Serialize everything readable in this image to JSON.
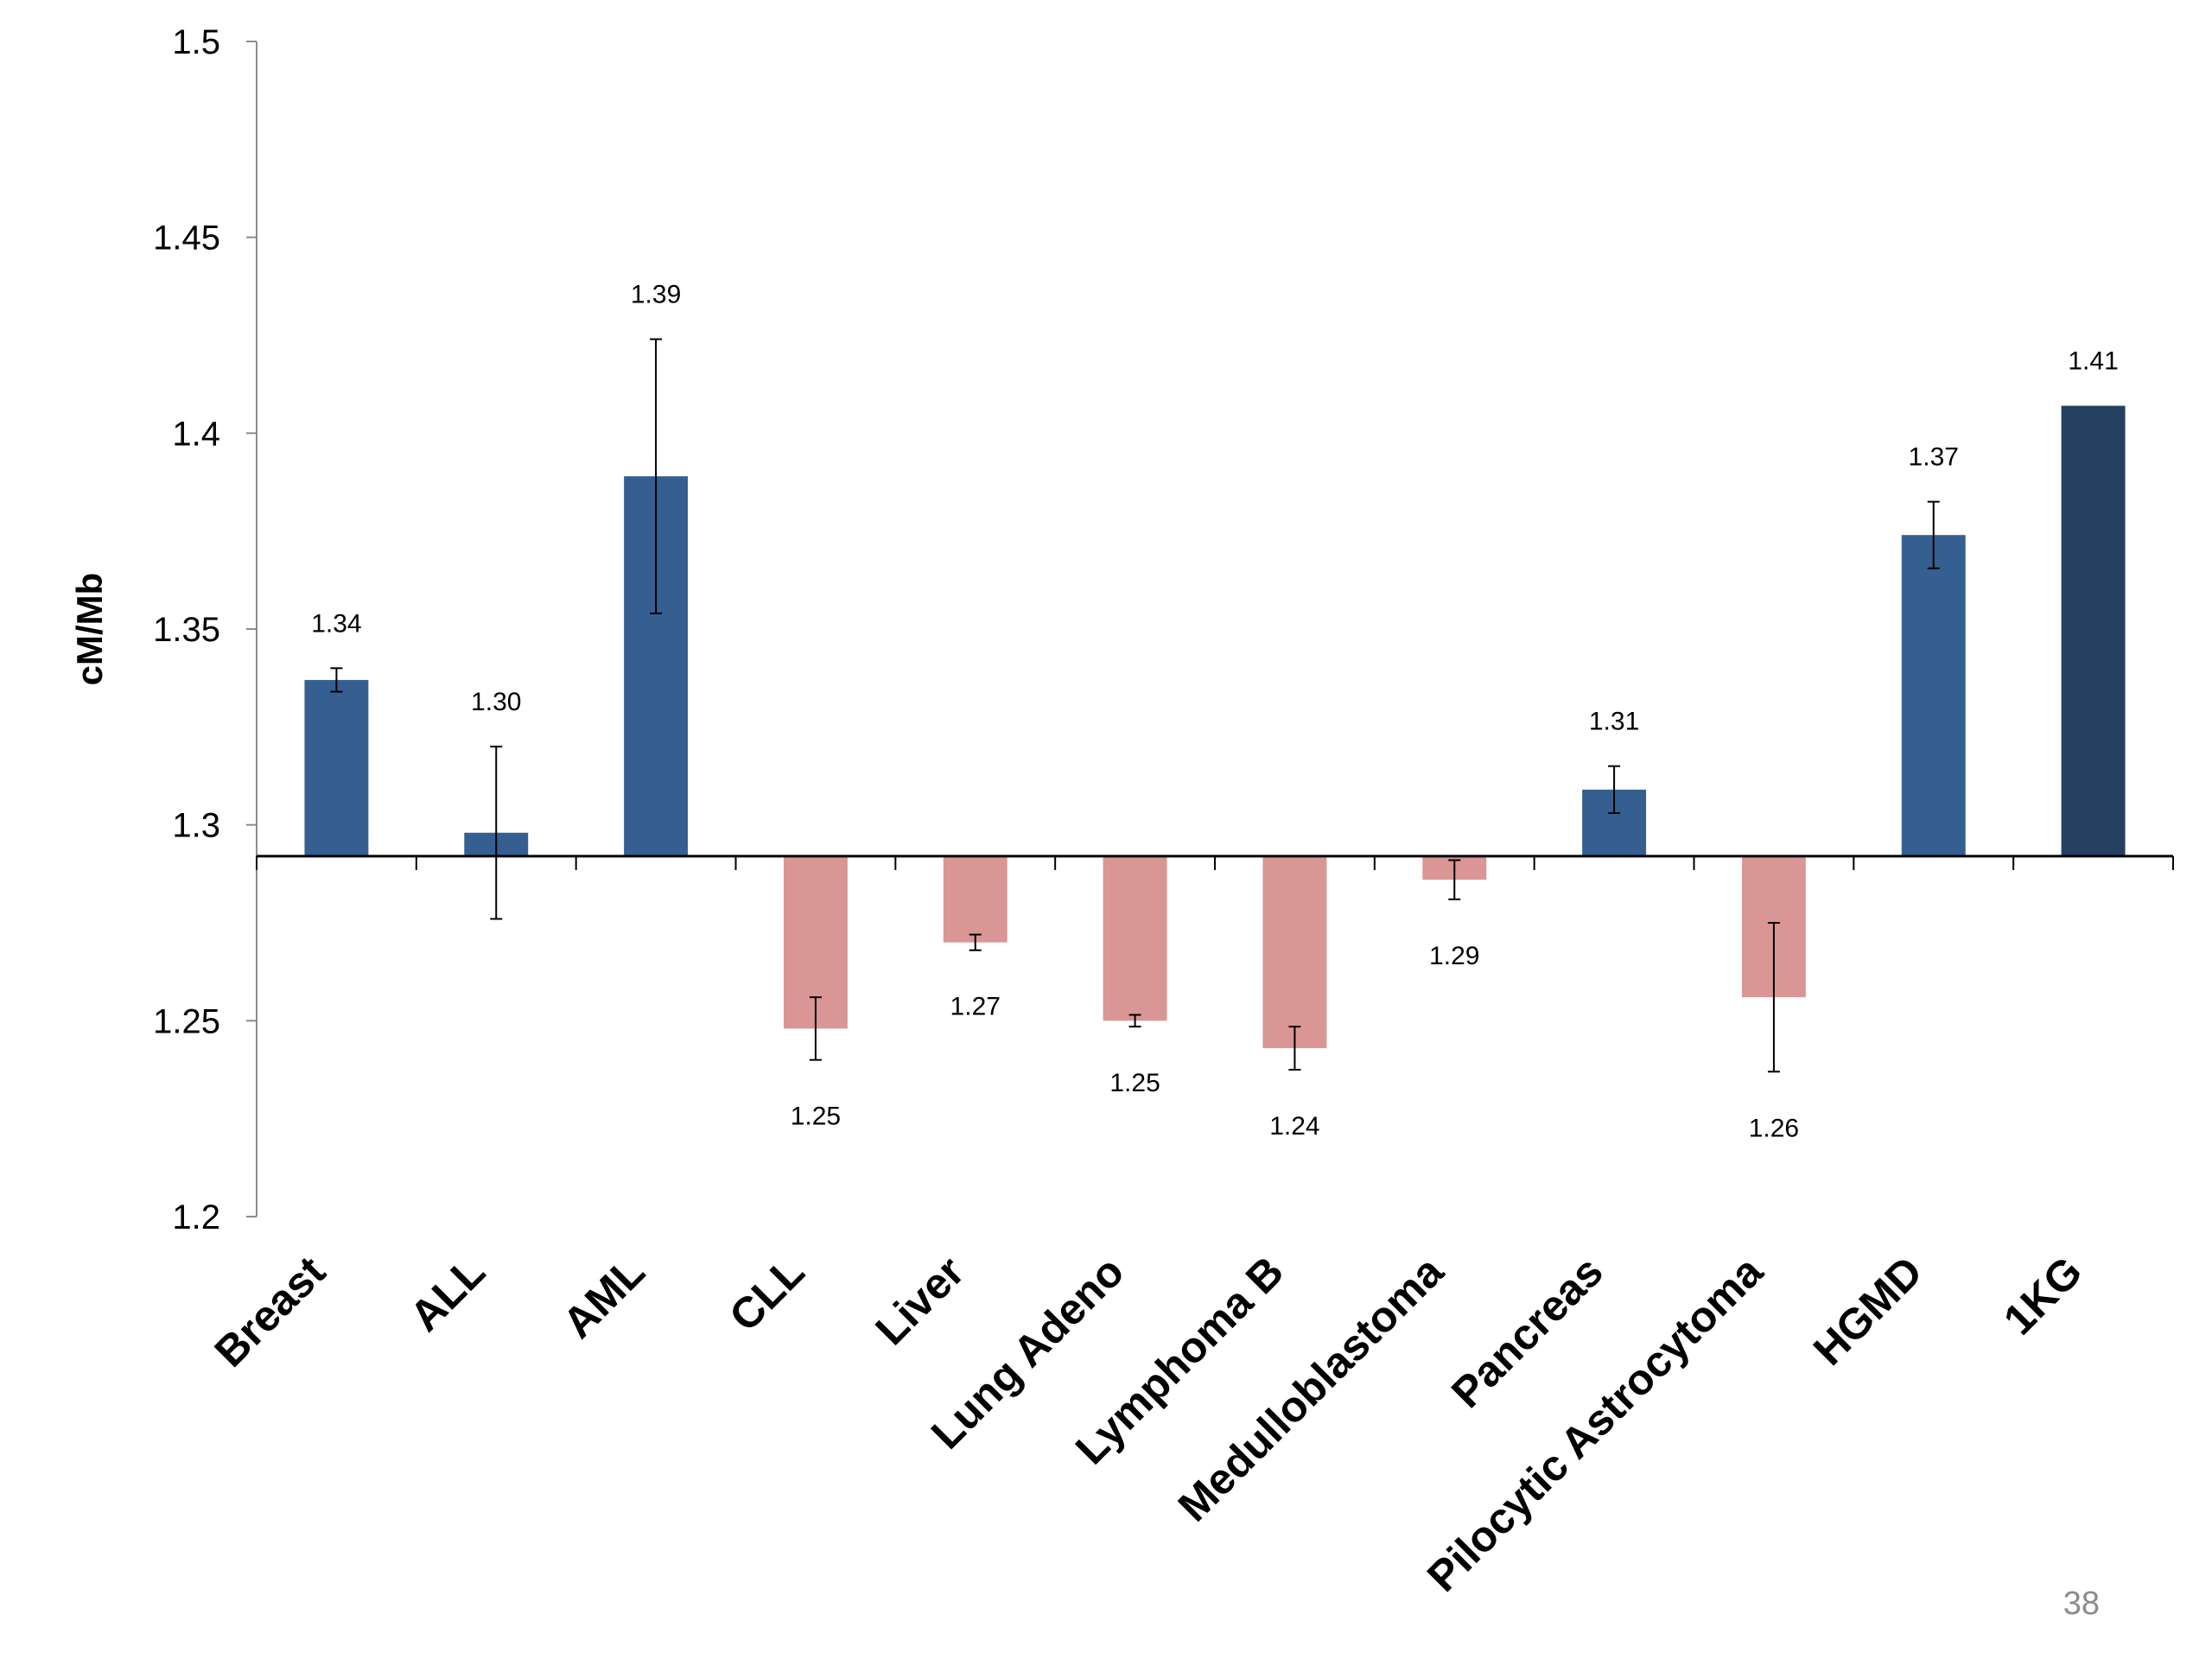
{
  "chart_data": {
    "type": "bar",
    "title": "",
    "xlabel": "",
    "ylabel": "cM/Mb",
    "ylim": [
      1.2,
      1.5
    ],
    "yticks": [
      1.2,
      1.25,
      1.3,
      1.35,
      1.4,
      1.45,
      1.5
    ],
    "baseline": 1.292,
    "grid": false,
    "legend": "none",
    "categories": [
      "Breast",
      "ALL",
      "AML",
      "CLL",
      "Liver",
      "Lung Adeno",
      "Lymphoma B",
      "Medulloblastoma",
      "Pancreas",
      "Pilocytic Astrocytoma",
      "HGMD",
      "1KG"
    ],
    "values": [
      1.337,
      1.298,
      1.389,
      1.248,
      1.27,
      1.25,
      1.243,
      1.286,
      1.309,
      1.256,
      1.374,
      1.407
    ],
    "error": [
      0.003,
      0.022,
      0.035,
      0.008,
      0.002,
      0.0015,
      0.0055,
      0.005,
      0.006,
      0.019,
      0.0085,
      null
    ],
    "data_labels": [
      "1.34",
      "1.30",
      "1.39",
      "1.25",
      "1.27",
      "1.25",
      "1.24",
      "1.29",
      "1.31",
      "1.26",
      "1.37",
      "1.41"
    ],
    "colors": {
      "above": "#365f91",
      "below": "#d99694",
      "reference": "#243f60",
      "axis": "#000000"
    },
    "bar_color_keys": [
      "above",
      "above",
      "above",
      "below",
      "below",
      "below",
      "below",
      "below",
      "above",
      "below",
      "above",
      "reference"
    ]
  },
  "page": {
    "number": "38"
  }
}
